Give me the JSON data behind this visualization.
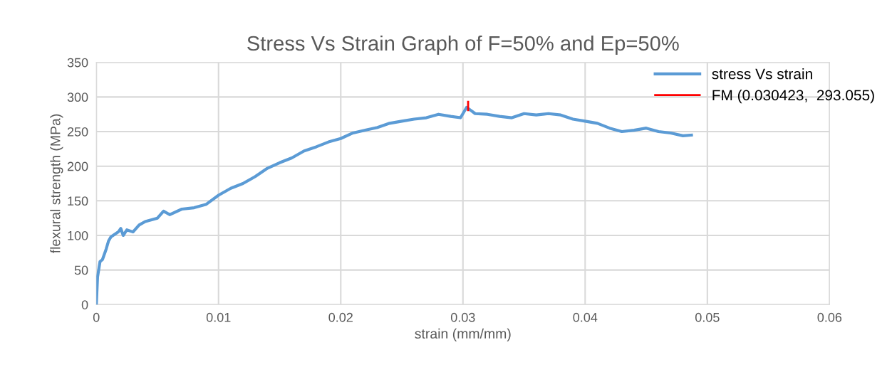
{
  "chart_data": {
    "type": "line",
    "title": "Stress Vs Strain Graph of F=50% and Ep=50%",
    "xlabel": "strain (mm/mm)",
    "ylabel": "flexural strength (MPa)",
    "xlim": [
      0,
      0.06
    ],
    "xticks": [
      0,
      0.01,
      0.02,
      0.03,
      0.04,
      0.05,
      0.06
    ],
    "ylim": [
      0,
      350
    ],
    "yticks": [
      0,
      50,
      100,
      150,
      200,
      250,
      300,
      350
    ],
    "grid": true,
    "legend": "top right",
    "marker": "none",
    "line_style": "solid",
    "series": [
      {
        "name": "stress Vs strain",
        "color": "#5b9bd5",
        "x": [
          0,
          0.0001,
          0.0003,
          0.0005,
          0.0008,
          0.001,
          0.0012,
          0.0018,
          0.002,
          0.0022,
          0.0025,
          0.003,
          0.0035,
          0.004,
          0.005,
          0.0055,
          0.006,
          0.007,
          0.008,
          0.009,
          0.01,
          0.011,
          0.012,
          0.013,
          0.014,
          0.015,
          0.016,
          0.017,
          0.018,
          0.019,
          0.02,
          0.021,
          0.022,
          0.023,
          0.024,
          0.025,
          0.026,
          0.027,
          0.028,
          0.029,
          0.0298,
          0.0303,
          0.0307,
          0.031,
          0.032,
          0.033,
          0.034,
          0.035,
          0.036,
          0.037,
          0.038,
          0.039,
          0.04,
          0.041,
          0.042,
          0.043,
          0.044,
          0.045,
          0.046,
          0.047,
          0.048,
          0.0487
        ],
        "values": [
          0,
          40,
          62,
          65,
          80,
          92,
          98,
          105,
          110,
          100,
          108,
          105,
          115,
          120,
          125,
          135,
          130,
          138,
          140,
          145,
          158,
          168,
          175,
          185,
          197,
          205,
          212,
          222,
          228,
          235,
          240,
          248,
          252,
          256,
          262,
          265,
          268,
          270,
          275,
          272,
          270,
          285,
          280,
          276,
          275,
          272,
          270,
          276,
          274,
          276,
          274,
          268,
          265,
          262,
          255,
          250,
          252,
          255,
          250,
          248,
          244,
          245
        ]
      },
      {
        "name": "FM (0.030423,  293.055)",
        "color": "#ff0000",
        "x": [
          0.030423,
          0.030423
        ],
        "values": [
          281,
          293.055
        ]
      }
    ]
  }
}
